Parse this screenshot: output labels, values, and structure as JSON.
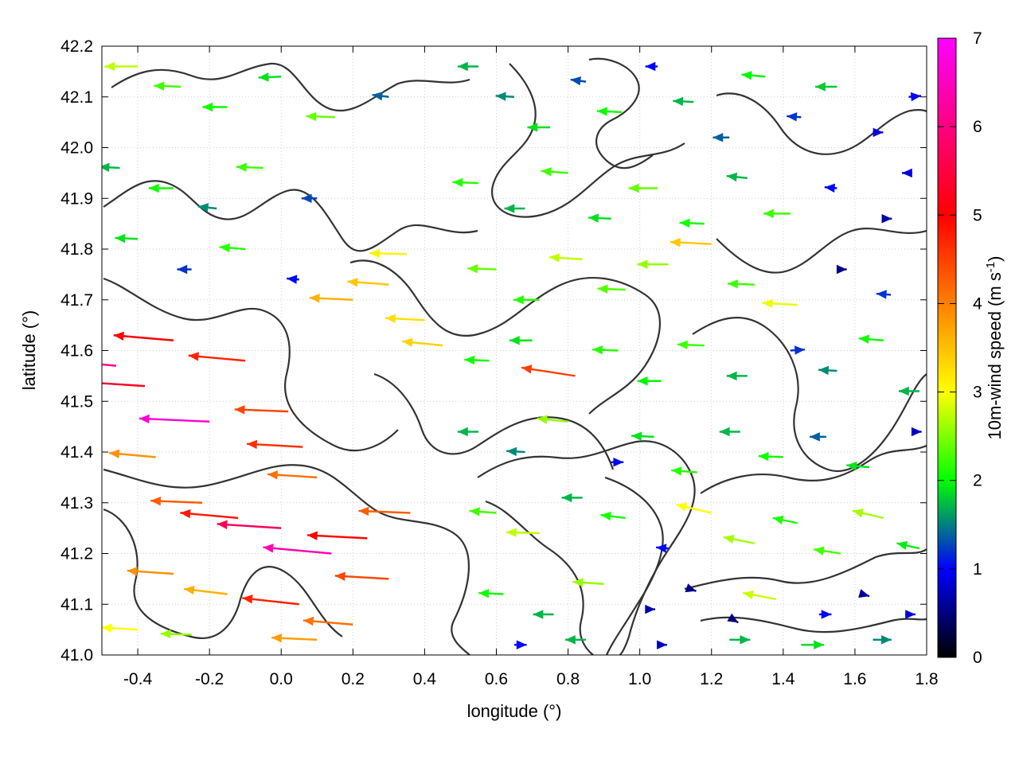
{
  "chart_data": {
    "type": "vector-field",
    "xlabel": "longitude (°)",
    "ylabel": "latitude (°)",
    "xlim": [
      -0.5,
      1.8
    ],
    "ylim": [
      41.0,
      42.2
    ],
    "x_ticks": [
      "-0.4",
      "-0.2",
      "0.0",
      "0.2",
      "0.4",
      "0.6",
      "0.8",
      "1.0",
      "1.2",
      "1.4",
      "1.6",
      "1.8"
    ],
    "x_tick_values": [
      -0.4,
      -0.2,
      0.0,
      0.2,
      0.4,
      0.6,
      0.8,
      1.0,
      1.2,
      1.4,
      1.6,
      1.8
    ],
    "y_ticks": [
      "41.0",
      "41.1",
      "41.2",
      "41.3",
      "41.4",
      "41.5",
      "41.6",
      "41.7",
      "41.8",
      "41.9",
      "42.0",
      "42.1",
      "42.2"
    ],
    "y_tick_values": [
      41.0,
      41.1,
      41.2,
      41.3,
      41.4,
      41.5,
      41.6,
      41.7,
      41.8,
      41.9,
      42.0,
      42.1,
      42.2
    ],
    "colorbar": {
      "label_main": "10m-wind speed (m s",
      "label_sup": "-1",
      "label_close": ")",
      "range": [
        0,
        7
      ],
      "ticks": [
        "0",
        "1",
        "2",
        "3",
        "4",
        "5",
        "6",
        "7"
      ],
      "tick_values": [
        0,
        1,
        2,
        3,
        4,
        5,
        6,
        7
      ],
      "palette": [
        "#000000",
        "#0000ff",
        "#00ff00",
        "#ffff00",
        "#ff8000",
        "#ff0000",
        "#ff00ff"
      ]
    },
    "grid": true,
    "contours_shown": true,
    "vectors": [
      {
        "lon": -0.46,
        "lat": 41.57,
        "u": -6.5,
        "v": 0.6
      },
      {
        "lon": -0.38,
        "lat": 41.53,
        "u": -6.0,
        "v": 0.4
      },
      {
        "lon": -0.3,
        "lat": 41.62,
        "u": -5.8,
        "v": 0.5
      },
      {
        "lon": -0.2,
        "lat": 41.46,
        "u": -6.8,
        "v": 0.3
      },
      {
        "lon": -0.1,
        "lat": 41.58,
        "u": -5.5,
        "v": 0.5
      },
      {
        "lon": 0.02,
        "lat": 41.48,
        "u": -5.2,
        "v": 0.2
      },
      {
        "lon": 0.06,
        "lat": 41.41,
        "u": -5.4,
        "v": 0.3
      },
      {
        "lon": 0.1,
        "lat": 41.35,
        "u": -4.8,
        "v": 0.3
      },
      {
        "lon": -0.35,
        "lat": 41.39,
        "u": -4.5,
        "v": 0.4
      },
      {
        "lon": -0.22,
        "lat": 41.3,
        "u": -5.0,
        "v": 0.2
      },
      {
        "lon": -0.12,
        "lat": 41.27,
        "u": -5.6,
        "v": 0.5
      },
      {
        "lon": 0.0,
        "lat": 41.25,
        "u": -6.2,
        "v": 0.4
      },
      {
        "lon": 0.14,
        "lat": 41.2,
        "u": -6.6,
        "v": 0.6
      },
      {
        "lon": 0.24,
        "lat": 41.23,
        "u": -5.8,
        "v": 0.3
      },
      {
        "lon": 0.36,
        "lat": 41.28,
        "u": -5.0,
        "v": 0.2
      },
      {
        "lon": -0.3,
        "lat": 41.16,
        "u": -4.5,
        "v": 0.3
      },
      {
        "lon": -0.15,
        "lat": 41.12,
        "u": -4.2,
        "v": 0.5
      },
      {
        "lon": 0.05,
        "lat": 41.1,
        "u": -5.5,
        "v": 0.6
      },
      {
        "lon": 0.2,
        "lat": 41.06,
        "u": -4.8,
        "v": 0.4
      },
      {
        "lon": 0.3,
        "lat": 41.15,
        "u": -5.2,
        "v": 0.3
      },
      {
        "lon": -0.4,
        "lat": 41.05,
        "u": -3.5,
        "v": 0.2
      },
      {
        "lon": -0.25,
        "lat": 41.04,
        "u": -3.0,
        "v": 0.1
      },
      {
        "lon": 0.1,
        "lat": 41.03,
        "u": -4.4,
        "v": 0.2
      },
      {
        "lon": 0.2,
        "lat": 41.7,
        "u": -4.2,
        "v": 0.2
      },
      {
        "lon": 0.3,
        "lat": 41.73,
        "u": -4.0,
        "v": 0.3
      },
      {
        "lon": 0.4,
        "lat": 41.66,
        "u": -3.8,
        "v": 0.2
      },
      {
        "lon": 0.35,
        "lat": 41.79,
        "u": -3.6,
        "v": 0.1
      },
      {
        "lon": 0.45,
        "lat": 41.61,
        "u": -3.9,
        "v": 0.4
      },
      {
        "lon": -0.4,
        "lat": 42.16,
        "u": -3.2,
        "v": 0.0
      },
      {
        "lon": -0.28,
        "lat": 42.12,
        "u": -2.6,
        "v": 0.1
      },
      {
        "lon": -0.15,
        "lat": 42.08,
        "u": -2.4,
        "v": 0.0
      },
      {
        "lon": 0.0,
        "lat": 42.14,
        "u": -2.2,
        "v": -0.1
      },
      {
        "lon": 0.15,
        "lat": 42.06,
        "u": -2.8,
        "v": 0.1
      },
      {
        "lon": 0.3,
        "lat": 42.1,
        "u": -1.6,
        "v": 0.2
      },
      {
        "lon": -0.45,
        "lat": 41.96,
        "u": -2.0,
        "v": 0.1
      },
      {
        "lon": -0.3,
        "lat": 41.92,
        "u": -2.4,
        "v": 0.0
      },
      {
        "lon": -0.18,
        "lat": 41.88,
        "u": -1.8,
        "v": 0.2
      },
      {
        "lon": -0.05,
        "lat": 41.96,
        "u": -2.6,
        "v": 0.1
      },
      {
        "lon": 0.1,
        "lat": 41.9,
        "u": -1.5,
        "v": 0.0
      },
      {
        "lon": -0.4,
        "lat": 41.82,
        "u": -2.2,
        "v": 0.1
      },
      {
        "lon": -0.25,
        "lat": 41.76,
        "u": -1.4,
        "v": 0.0
      },
      {
        "lon": -0.1,
        "lat": 41.8,
        "u": -2.5,
        "v": 0.2
      },
      {
        "lon": 0.05,
        "lat": 41.74,
        "u": -1.2,
        "v": 0.1
      },
      {
        "lon": 0.55,
        "lat": 42.16,
        "u": -2.0,
        "v": 0.0
      },
      {
        "lon": 0.65,
        "lat": 42.1,
        "u": -1.8,
        "v": 0.1
      },
      {
        "lon": 0.75,
        "lat": 42.04,
        "u": -2.2,
        "v": 0.0
      },
      {
        "lon": 0.85,
        "lat": 42.13,
        "u": -1.5,
        "v": 0.2
      },
      {
        "lon": 0.95,
        "lat": 42.07,
        "u": -2.4,
        "v": 0.1
      },
      {
        "lon": 1.05,
        "lat": 42.16,
        "u": -1.2,
        "v": 0.0
      },
      {
        "lon": 1.15,
        "lat": 42.09,
        "u": -2.0,
        "v": 0.1
      },
      {
        "lon": 1.25,
        "lat": 42.02,
        "u": -1.6,
        "v": 0.0
      },
      {
        "lon": 1.35,
        "lat": 42.14,
        "u": -2.3,
        "v": 0.2
      },
      {
        "lon": 1.45,
        "lat": 42.06,
        "u": -1.4,
        "v": 0.1
      },
      {
        "lon": 1.55,
        "lat": 42.12,
        "u": -2.1,
        "v": 0.0
      },
      {
        "lon": 1.65,
        "lat": 42.03,
        "u": 1.0,
        "v": 0.0
      },
      {
        "lon": 1.75,
        "lat": 42.1,
        "u": 1.2,
        "v": 0.1
      },
      {
        "lon": 0.55,
        "lat": 41.93,
        "u": -2.5,
        "v": 0.1
      },
      {
        "lon": 0.68,
        "lat": 41.88,
        "u": -2.0,
        "v": 0.0
      },
      {
        "lon": 0.8,
        "lat": 41.95,
        "u": -2.6,
        "v": 0.2
      },
      {
        "lon": 0.92,
        "lat": 41.86,
        "u": -2.2,
        "v": 0.1
      },
      {
        "lon": 1.05,
        "lat": 41.92,
        "u": -2.8,
        "v": 0.0
      },
      {
        "lon": 1.18,
        "lat": 41.85,
        "u": -2.4,
        "v": 0.1
      },
      {
        "lon": 1.3,
        "lat": 41.94,
        "u": -2.0,
        "v": 0.2
      },
      {
        "lon": 1.42,
        "lat": 41.87,
        "u": -2.6,
        "v": 0.0
      },
      {
        "lon": 1.55,
        "lat": 41.92,
        "u": -1.2,
        "v": 0.1
      },
      {
        "lon": 1.68,
        "lat": 41.86,
        "u": 0.8,
        "v": 0.0
      },
      {
        "lon": 1.76,
        "lat": 41.95,
        "u": -1.0,
        "v": 0.0
      },
      {
        "lon": 0.6,
        "lat": 41.76,
        "u": -2.8,
        "v": 0.1
      },
      {
        "lon": 0.72,
        "lat": 41.7,
        "u": -2.5,
        "v": 0.0
      },
      {
        "lon": 0.84,
        "lat": 41.78,
        "u": -3.2,
        "v": 0.2
      },
      {
        "lon": 0.96,
        "lat": 41.72,
        "u": -2.7,
        "v": 0.1
      },
      {
        "lon": 1.08,
        "lat": 41.77,
        "u": -3.0,
        "v": 0.0
      },
      {
        "lon": 1.2,
        "lat": 41.81,
        "u": -4.0,
        "v": 0.2
      },
      {
        "lon": 1.32,
        "lat": 41.73,
        "u": -2.6,
        "v": 0.1
      },
      {
        "lon": 1.44,
        "lat": 41.69,
        "u": -3.4,
        "v": 0.2
      },
      {
        "lon": 1.56,
        "lat": 41.76,
        "u": 0.6,
        "v": 0.0
      },
      {
        "lon": 1.7,
        "lat": 41.71,
        "u": -1.4,
        "v": 0.1
      },
      {
        "lon": 0.58,
        "lat": 41.58,
        "u": -2.4,
        "v": 0.1
      },
      {
        "lon": 0.7,
        "lat": 41.62,
        "u": -2.2,
        "v": 0.0
      },
      {
        "lon": 0.82,
        "lat": 41.55,
        "u": -5.2,
        "v": 0.8
      },
      {
        "lon": 0.94,
        "lat": 41.6,
        "u": -2.5,
        "v": 0.1
      },
      {
        "lon": 1.06,
        "lat": 41.54,
        "u": -2.3,
        "v": 0.0
      },
      {
        "lon": 1.18,
        "lat": 41.61,
        "u": -2.6,
        "v": 0.1
      },
      {
        "lon": 1.3,
        "lat": 41.55,
        "u": -2.0,
        "v": 0.0
      },
      {
        "lon": 1.42,
        "lat": 41.6,
        "u": 1.4,
        "v": 0.1
      },
      {
        "lon": 1.55,
        "lat": 41.56,
        "u": -1.8,
        "v": 0.1
      },
      {
        "lon": 1.68,
        "lat": 41.62,
        "u": -2.4,
        "v": 0.2
      },
      {
        "lon": 1.78,
        "lat": 41.52,
        "u": -2.0,
        "v": 0.0
      },
      {
        "lon": 0.55,
        "lat": 41.44,
        "u": -2.0,
        "v": 0.0
      },
      {
        "lon": 0.68,
        "lat": 41.4,
        "u": -1.8,
        "v": 0.1
      },
      {
        "lon": 0.8,
        "lat": 41.46,
        "u": -3.0,
        "v": 0.3
      },
      {
        "lon": 0.92,
        "lat": 41.38,
        "u": 1.2,
        "v": 0.0
      },
      {
        "lon": 1.04,
        "lat": 41.43,
        "u": -2.2,
        "v": 0.1
      },
      {
        "lon": 1.16,
        "lat": 41.36,
        "u": -2.5,
        "v": 0.2
      },
      {
        "lon": 1.28,
        "lat": 41.44,
        "u": -2.0,
        "v": 0.0
      },
      {
        "lon": 1.4,
        "lat": 41.39,
        "u": -2.4,
        "v": 0.1
      },
      {
        "lon": 1.52,
        "lat": 41.43,
        "u": -1.6,
        "v": 0.0
      },
      {
        "lon": 1.64,
        "lat": 41.37,
        "u": -2.2,
        "v": 0.2
      },
      {
        "lon": 1.76,
        "lat": 41.44,
        "u": 0.9,
        "v": 0.0
      },
      {
        "lon": 0.6,
        "lat": 41.28,
        "u": -2.6,
        "v": 0.2
      },
      {
        "lon": 0.72,
        "lat": 41.24,
        "u": -3.2,
        "v": 0.1
      },
      {
        "lon": 0.84,
        "lat": 41.31,
        "u": -2.0,
        "v": 0.0
      },
      {
        "lon": 0.96,
        "lat": 41.27,
        "u": -2.4,
        "v": 0.3
      },
      {
        "lon": 1.08,
        "lat": 41.21,
        "u": -1.2,
        "v": 0.1
      },
      {
        "lon": 1.2,
        "lat": 41.28,
        "u": -3.4,
        "v": 0.8
      },
      {
        "lon": 1.32,
        "lat": 41.22,
        "u": -3.0,
        "v": 0.6
      },
      {
        "lon": 1.44,
        "lat": 41.26,
        "u": -2.4,
        "v": 0.5
      },
      {
        "lon": 1.56,
        "lat": 41.2,
        "u": -2.6,
        "v": 0.4
      },
      {
        "lon": 1.68,
        "lat": 41.27,
        "u": -3.0,
        "v": 0.7
      },
      {
        "lon": 1.78,
        "lat": 41.21,
        "u": -2.2,
        "v": 0.5
      },
      {
        "lon": 0.62,
        "lat": 41.12,
        "u": -2.4,
        "v": 0.1
      },
      {
        "lon": 0.76,
        "lat": 41.08,
        "u": -2.0,
        "v": 0.0
      },
      {
        "lon": 0.9,
        "lat": 41.14,
        "u": -3.0,
        "v": 0.2
      },
      {
        "lon": 1.02,
        "lat": 41.09,
        "u": 0.8,
        "v": 0.0
      },
      {
        "lon": 1.14,
        "lat": 41.13,
        "u": 0.6,
        "v": -0.2
      },
      {
        "lon": 1.26,
        "lat": 41.07,
        "u": 0.5,
        "v": -0.3
      },
      {
        "lon": 1.38,
        "lat": 41.11,
        "u": -3.2,
        "v": 0.6
      },
      {
        "lon": 1.5,
        "lat": 41.08,
        "u": 1.2,
        "v": 0.0
      },
      {
        "lon": 1.62,
        "lat": 41.12,
        "u": 0.7,
        "v": -0.2
      },
      {
        "lon": 1.74,
        "lat": 41.08,
        "u": 1.0,
        "v": 0.0
      },
      {
        "lon": 0.65,
        "lat": 41.02,
        "u": 1.2,
        "v": 0.0
      },
      {
        "lon": 0.85,
        "lat": 41.03,
        "u": -2.0,
        "v": 0.0
      },
      {
        "lon": 1.05,
        "lat": 41.02,
        "u": 0.9,
        "v": 0.0
      },
      {
        "lon": 1.25,
        "lat": 41.03,
        "u": 2.0,
        "v": 0.0
      },
      {
        "lon": 1.45,
        "lat": 41.02,
        "u": 2.2,
        "v": 0.0
      },
      {
        "lon": 1.65,
        "lat": 41.03,
        "u": 1.8,
        "v": 0.0
      }
    ]
  }
}
